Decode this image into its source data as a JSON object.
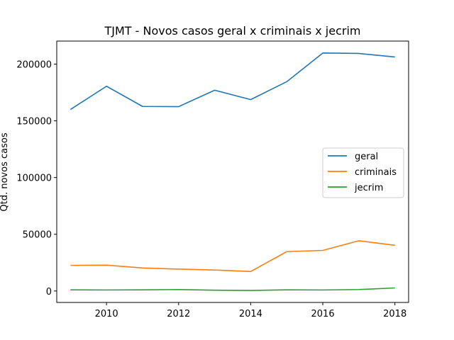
{
  "chart_data": {
    "type": "line",
    "title": "TJMT - Novos casos geral x criminais x jecrim",
    "xlabel": "",
    "ylabel": "Qtd. novos casos",
    "xlim": [
      2008.62,
      2018.38
    ],
    "ylim": [
      -10100,
      220300
    ],
    "xticks": [
      2010,
      2012,
      2014,
      2016,
      2018
    ],
    "yticks": [
      0,
      50000,
      100000,
      150000,
      200000
    ],
    "x": [
      2009,
      2010,
      2011,
      2012,
      2013,
      2014,
      2015,
      2016,
      2017,
      2018
    ],
    "series": [
      {
        "name": "geral",
        "color": "#1f77b4",
        "values": [
          160000,
          180500,
          162700,
          162500,
          177000,
          168700,
          184500,
          209800,
          209400,
          206300
        ]
      },
      {
        "name": "criminais",
        "color": "#ff7f0e",
        "values": [
          22600,
          22800,
          20300,
          19300,
          18500,
          17200,
          34700,
          35800,
          44300,
          40300
        ]
      },
      {
        "name": "jecrim",
        "color": "#2ca02c",
        "values": [
          1000,
          900,
          1000,
          1300,
          700,
          500,
          1000,
          900,
          1300,
          2700
        ]
      }
    ],
    "legend_position": "center-right",
    "grid": false
  }
}
